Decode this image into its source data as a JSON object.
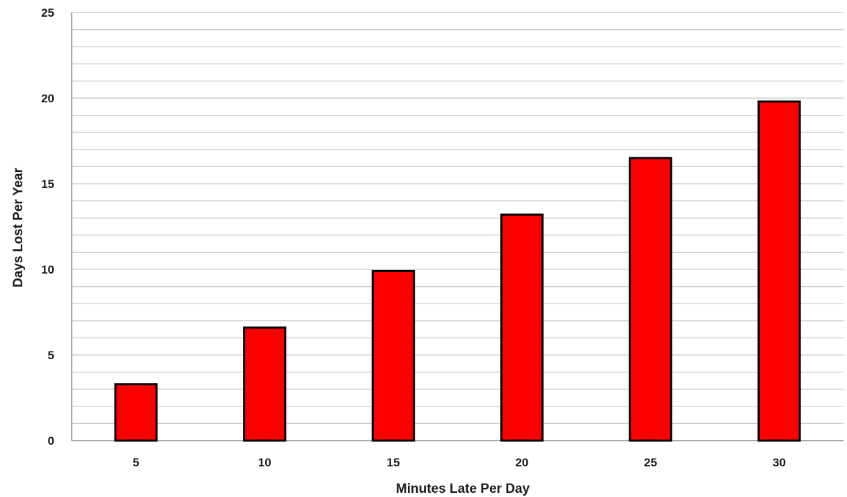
{
  "chart_data": {
    "type": "bar",
    "title": "",
    "xlabel": "Minutes Late Per Day",
    "ylabel": "Days Lost Per Year",
    "categories": [
      "5",
      "10",
      "15",
      "20",
      "25",
      "30"
    ],
    "values": [
      3.3,
      6.6,
      9.9,
      13.2,
      16.5,
      19.8
    ],
    "ylim": [
      0,
      25
    ],
    "y_ticks": [
      "0",
      "5",
      "10",
      "15",
      "20",
      "25"
    ],
    "minor_gridline_step": 1,
    "grid": true,
    "legend": "none",
    "bar_color": "#ff0000",
    "bar_outline_color": "#000000",
    "gridline_color": "#c8c8c8"
  }
}
